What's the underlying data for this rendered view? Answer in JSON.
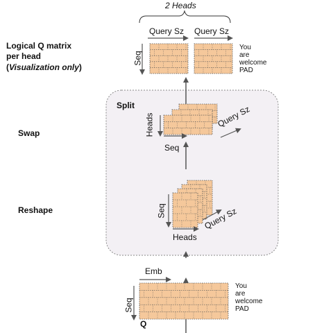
{
  "heads_label": "2 Heads",
  "logical": {
    "line1": "Logical Q matrix",
    "line2": "per head",
    "line3_open": "(",
    "line3_italic": "Visualization only",
    "line3_close": ")"
  },
  "swap_label": "Swap",
  "reshape_label": "Reshape",
  "split_label": "Split",
  "axis": {
    "query_sz": "Query Sz",
    "seq": "Seq",
    "heads": "Heads",
    "emb": "Emb"
  },
  "q_label": "Q",
  "pad_text": [
    "You",
    "are",
    "welcome",
    "PAD"
  ],
  "colors": {
    "cell_fill": "#f5c89b",
    "cell_border": "#555555",
    "split_fill": "#f3f0f4",
    "split_border": "#888888",
    "arrow": "#555555"
  }
}
